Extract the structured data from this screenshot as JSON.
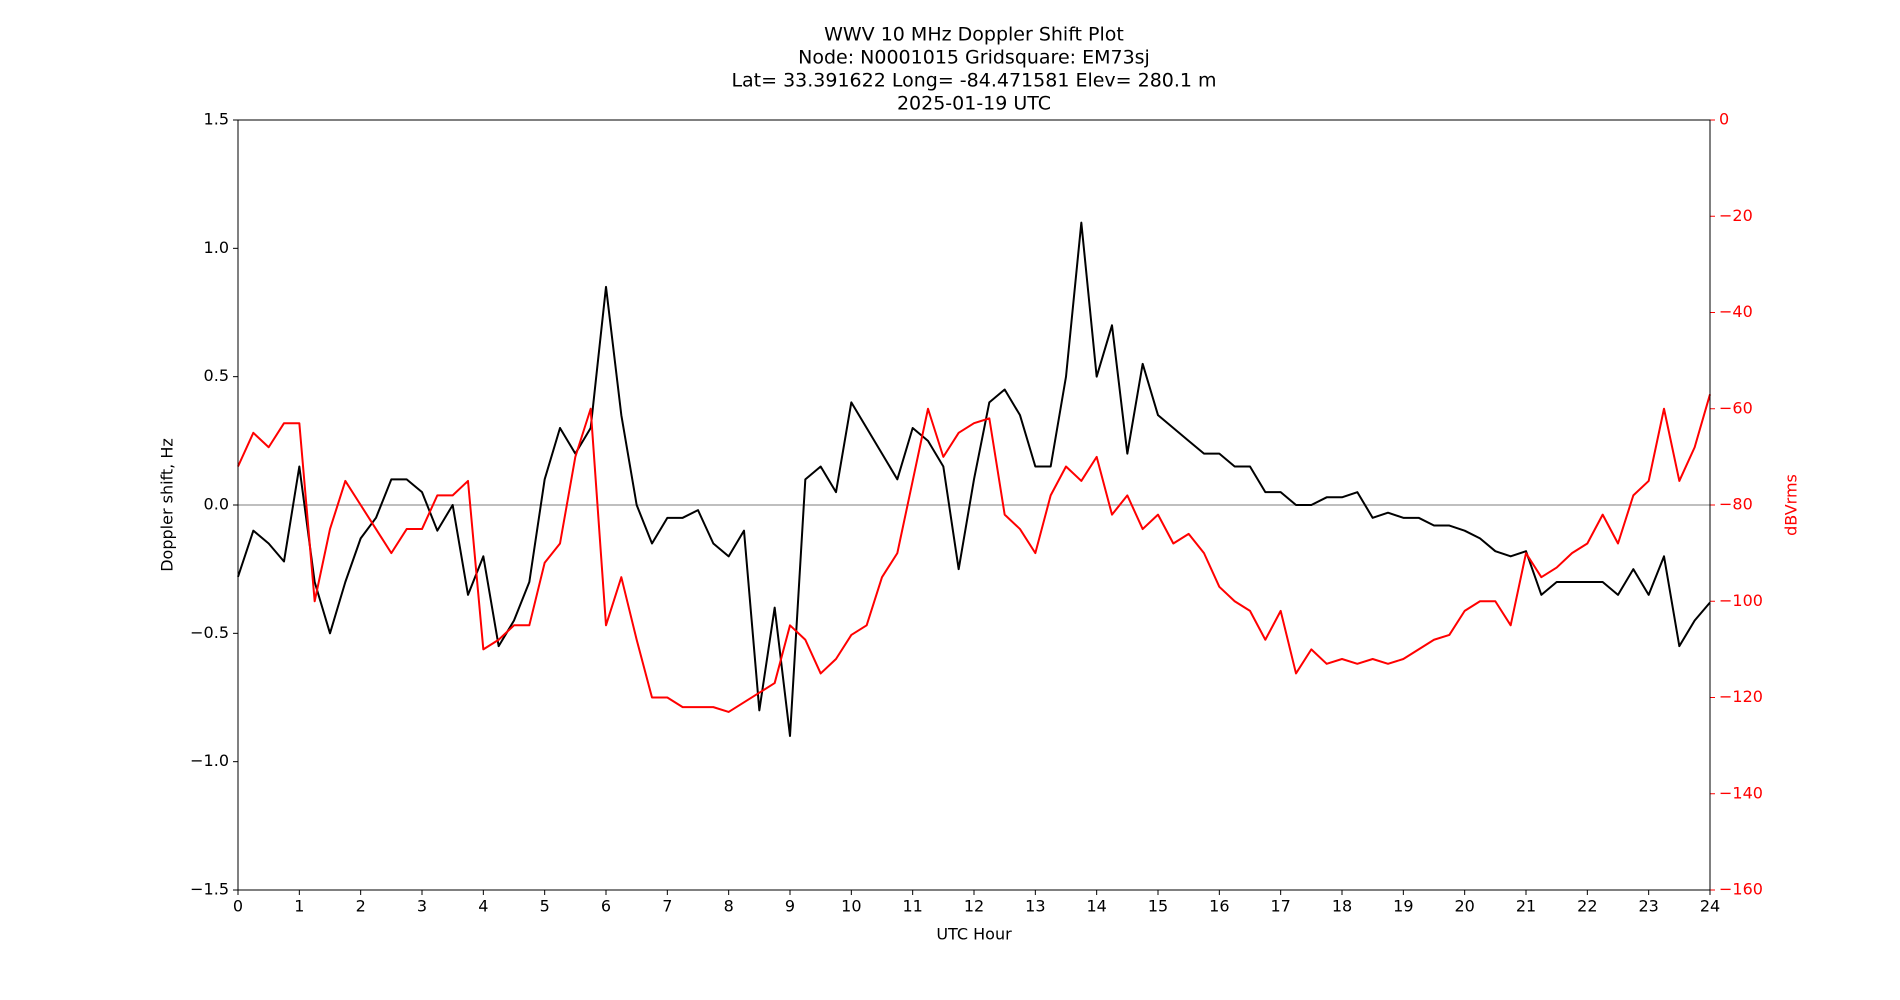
{
  "chart_data": {
    "type": "line",
    "title": [
      "WWV 10 MHz Doppler Shift Plot",
      "Node:  N0001015     Gridsquare:  EM73sj",
      "Lat= 33.391622    Long= -84.471581    Elev= 280.1 m",
      "2025-01-19  UTC"
    ],
    "xlabel": "UTC Hour",
    "ylabel": "Doppler shift, Hz",
    "y2label": "dBVrms",
    "xlim": [
      0,
      24
    ],
    "ylim": [
      -1.5,
      1.5
    ],
    "y2lim": [
      -160,
      0
    ],
    "xticks": [
      0,
      1,
      2,
      3,
      4,
      5,
      6,
      7,
      8,
      9,
      10,
      11,
      12,
      13,
      14,
      15,
      16,
      17,
      18,
      19,
      20,
      21,
      22,
      23,
      24
    ],
    "yticks": [
      {
        "value": -1.5,
        "label": "−1.5"
      },
      {
        "value": -1.0,
        "label": "−1.0"
      },
      {
        "value": -0.5,
        "label": "−0.5"
      },
      {
        "value": 0.0,
        "label": "0.0"
      },
      0.5,
      {
        "value": 1.0,
        "label": "1.0"
      },
      1.5
    ],
    "y2ticks": [
      {
        "value": -160,
        "label": "−160"
      },
      {
        "value": -140,
        "label": "−140"
      },
      {
        "value": -120,
        "label": "−120"
      },
      {
        "value": -100,
        "label": "−100"
      },
      {
        "value": -80,
        "label": "−80"
      },
      {
        "value": -60,
        "label": "−60"
      },
      {
        "value": -40,
        "label": "−40"
      },
      {
        "value": -20,
        "label": "−20"
      },
      0
    ],
    "y2color": "#ff0000",
    "hline": 0,
    "hline_color": "#999999",
    "x": [
      0,
      0.25,
      0.5,
      0.75,
      1,
      1.25,
      1.5,
      1.75,
      2,
      2.25,
      2.5,
      2.75,
      3,
      3.25,
      3.5,
      3.75,
      4,
      4.25,
      4.5,
      4.75,
      5,
      5.25,
      5.5,
      5.75,
      6,
      6.25,
      6.5,
      6.75,
      7,
      7.25,
      7.5,
      7.75,
      8,
      8.25,
      8.5,
      8.75,
      9,
      9.25,
      9.5,
      9.75,
      10,
      10.25,
      10.5,
      10.75,
      11,
      11.25,
      11.5,
      11.75,
      12,
      12.25,
      12.5,
      12.75,
      13,
      13.25,
      13.5,
      13.75,
      14,
      14.25,
      14.5,
      14.75,
      15,
      15.25,
      15.5,
      15.75,
      16,
      16.25,
      16.5,
      16.75,
      17,
      17.25,
      17.5,
      17.75,
      18,
      18.25,
      18.5,
      18.75,
      19,
      19.25,
      19.5,
      19.75,
      20,
      20.25,
      20.5,
      20.75,
      21,
      21.25,
      21.5,
      21.75,
      22,
      22.25,
      22.5,
      22.75,
      23,
      23.25,
      23.5,
      23.75,
      24
    ],
    "series": [
      {
        "color": "#000000",
        "axis": "y",
        "values": [
          -0.28,
          -0.1,
          -0.15,
          -0.22,
          0.15,
          -0.3,
          -0.5,
          -0.3,
          -0.13,
          -0.05,
          0.1,
          0.1,
          0.05,
          -0.1,
          0.0,
          -0.35,
          -0.2,
          -0.55,
          -0.45,
          -0.3,
          0.1,
          0.3,
          0.2,
          0.3,
          0.85,
          0.35,
          0.0,
          -0.15,
          -0.05,
          -0.05,
          -0.02,
          -0.15,
          -0.2,
          -0.1,
          -0.8,
          -0.4,
          -0.9,
          0.1,
          0.15,
          0.05,
          0.4,
          0.3,
          0.2,
          0.1,
          0.3,
          0.25,
          0.15,
          -0.25,
          0.1,
          0.4,
          0.45,
          0.35,
          0.15,
          0.15,
          0.5,
          1.1,
          0.5,
          0.7,
          0.2,
          0.55,
          0.35,
          0.3,
          0.25,
          0.2,
          0.2,
          0.15,
          0.15,
          0.05,
          0.05,
          0.0,
          0.0,
          0.03,
          0.03,
          0.05,
          -0.05,
          -0.03,
          -0.05,
          -0.05,
          -0.08,
          -0.08,
          -0.1,
          -0.13,
          -0.18,
          -0.2,
          -0.18,
          -0.35,
          -0.3,
          -0.3,
          -0.3,
          -0.3,
          -0.35,
          -0.25,
          -0.35,
          -0.2,
          -0.55,
          -0.45,
          -0.38
        ]
      },
      {
        "color": "#ff0000",
        "axis": "y2",
        "values": [
          -72,
          -65,
          -68,
          -63,
          -63,
          -100,
          -85,
          -75,
          -80,
          -85,
          -90,
          -85,
          -85,
          -78,
          -78,
          -75,
          -110,
          -108,
          -105,
          -105,
          -92,
          -88,
          -70,
          -60,
          -105,
          -95,
          -108,
          -120,
          -120,
          -122,
          -122,
          -122,
          -123,
          -121,
          -119,
          -117,
          -105,
          -108,
          -115,
          -112,
          -107,
          -105,
          -95,
          -90,
          -75,
          -60,
          -70,
          -65,
          -63,
          -62,
          -82,
          -85,
          -90,
          -78,
          -72,
          -75,
          -70,
          -82,
          -78,
          -85,
          -82,
          -88,
          -86,
          -90,
          -97,
          -100,
          -102,
          -108,
          -102,
          -115,
          -110,
          -113,
          -112,
          -113,
          -112,
          -113,
          -112,
          -110,
          -108,
          -107,
          -102,
          -100,
          -100,
          -105,
          -90,
          -95,
          -93,
          -90,
          -88,
          -82,
          -88,
          -78,
          -75,
          -60,
          -75,
          -68,
          -57
        ]
      }
    ]
  }
}
